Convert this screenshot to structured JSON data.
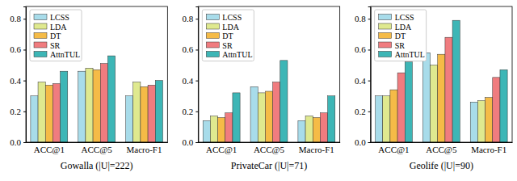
{
  "chart_data": [
    {
      "type": "bar",
      "x_label": "Gowalla (|U|=222)",
      "categories": [
        "ACC@1",
        "ACC@5",
        "Macro-F1"
      ],
      "series": [
        {
          "name": "LCSS",
          "color": "#a8dcea",
          "values": [
            0.3,
            0.46,
            0.3
          ]
        },
        {
          "name": "LDA",
          "color": "#dfe98f",
          "values": [
            0.39,
            0.48,
            0.39
          ]
        },
        {
          "name": "DT",
          "color": "#f5bb47",
          "values": [
            0.37,
            0.47,
            0.36
          ]
        },
        {
          "name": "SR",
          "color": "#f07c7f",
          "values": [
            0.38,
            0.51,
            0.37
          ]
        },
        {
          "name": "AttnTUL",
          "color": "#3db6b6",
          "values": [
            0.46,
            0.56,
            0.4
          ]
        }
      ],
      "ylim": [
        0,
        0.88
      ],
      "yticks": [
        {
          "value": 0,
          "label": "0.0"
        },
        0.2,
        0.4,
        0.6,
        0.8
      ],
      "legend": "upper left"
    },
    {
      "type": "bar",
      "x_label": "PrivateCar (|U|=71)",
      "categories": [
        "ACC@1",
        "ACC@5",
        "Macro-F1"
      ],
      "series": [
        {
          "name": "LCSS",
          "color": "#a8dcea",
          "values": [
            0.14,
            0.36,
            0.14
          ]
        },
        {
          "name": "LDA",
          "color": "#dfe98f",
          "values": [
            0.17,
            0.32,
            0.17
          ]
        },
        {
          "name": "DT",
          "color": "#f5bb47",
          "values": [
            0.16,
            0.33,
            0.16
          ]
        },
        {
          "name": "SR",
          "color": "#f07c7f",
          "values": [
            0.19,
            0.39,
            0.19
          ]
        },
        {
          "name": "AttnTUL",
          "color": "#3db6b6",
          "values": [
            0.32,
            0.53,
            0.3
          ]
        }
      ],
      "ylim": [
        0,
        0.88
      ],
      "yticks": [
        {
          "value": 0,
          "label": "0.0"
        },
        0.2,
        0.4,
        0.6,
        0.8
      ],
      "legend": "upper left"
    },
    {
      "type": "bar",
      "x_label": "Geolife (|U|=90)",
      "categories": [
        "ACC@1",
        "ACC@5",
        "Macro-F1"
      ],
      "series": [
        {
          "name": "LCSS",
          "color": "#a8dcea",
          "values": [
            0.3,
            0.58,
            0.26
          ]
        },
        {
          "name": "LDA",
          "color": "#dfe98f",
          "values": [
            0.3,
            0.5,
            0.27
          ]
        },
        {
          "name": "DT",
          "color": "#f5bb47",
          "values": [
            0.34,
            0.57,
            0.29
          ]
        },
        {
          "name": "SR",
          "color": "#f07c7f",
          "values": [
            0.45,
            0.68,
            0.42
          ]
        },
        {
          "name": "AttnTUL",
          "color": "#3db6b6",
          "values": [
            0.52,
            0.79,
            0.47
          ]
        }
      ],
      "ylim": [
        0,
        0.88
      ],
      "yticks": [
        {
          "value": 0,
          "label": "0.0"
        },
        0.2,
        0.4,
        0.6,
        0.8
      ],
      "legend": "upper left"
    }
  ]
}
